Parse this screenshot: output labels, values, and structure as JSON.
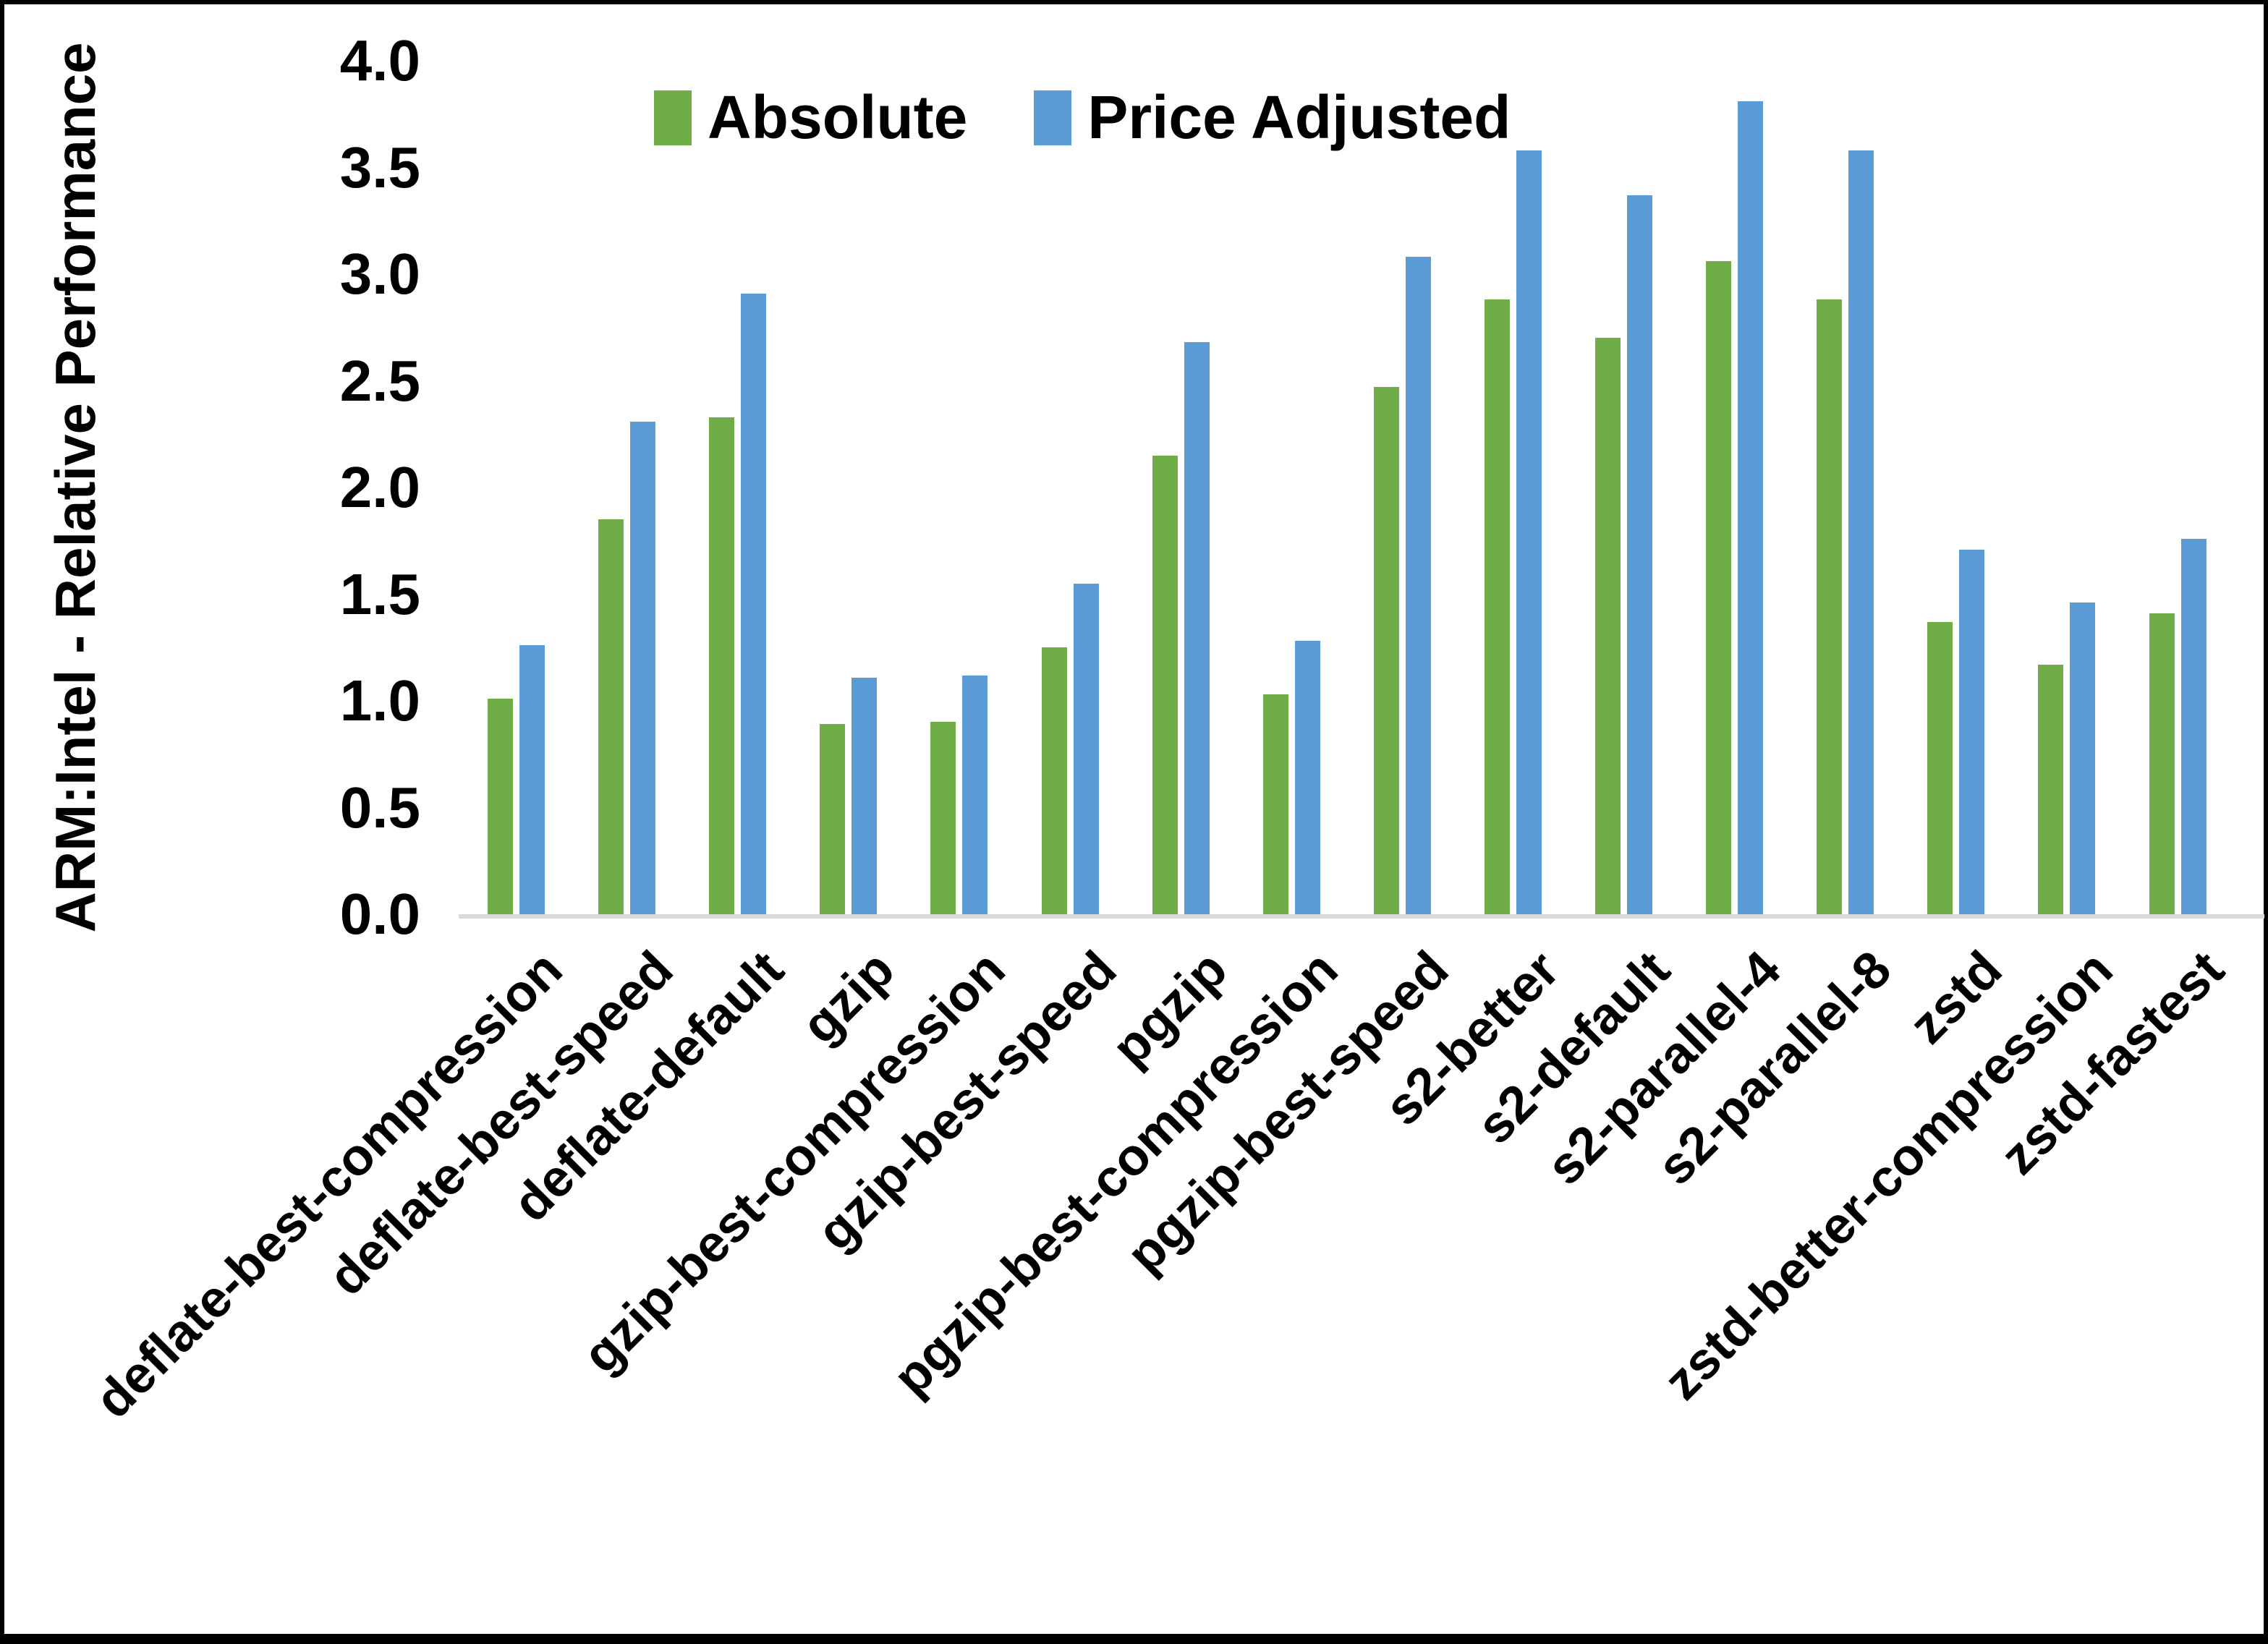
{
  "y_axis": {
    "title": "ARM:Intel - Relative Performance",
    "ticks": [
      "0.0",
      "0.5",
      "1.0",
      "1.5",
      "2.0",
      "2.5",
      "3.0",
      "3.5",
      "4.0"
    ]
  },
  "legend": [
    {
      "label": "Absolute",
      "color": "#70AD47"
    },
    {
      "label": "Price Adjusted",
      "color": "#5B9BD5"
    }
  ],
  "chart_data": {
    "type": "bar",
    "title": "",
    "categories": [
      "deflate-best-compression",
      "deflate-best-speed",
      "deflate-default",
      "gzip",
      "gzip-best-compression",
      "gzip-best-speed",
      "pgzip",
      "pgzip-best-compression",
      "pgzip-best-speed",
      "s2-better",
      "s2-default",
      "s2-parallel-4",
      "s2-parallel-8",
      "zstd",
      "zstd-better-compression",
      "zstd-fastest"
    ],
    "series": [
      {
        "name": "Absolute",
        "color": "#70AD47",
        "values": [
          1.01,
          1.85,
          2.33,
          0.89,
          0.9,
          1.25,
          2.15,
          1.03,
          2.47,
          2.88,
          2.7,
          3.06,
          2.88,
          1.37,
          1.17,
          1.41
        ]
      },
      {
        "name": "Price Adjusted",
        "color": "#5B9BD5",
        "values": [
          1.26,
          2.31,
          2.91,
          1.11,
          1.12,
          1.55,
          2.68,
          1.28,
          3.08,
          3.58,
          3.37,
          3.81,
          3.58,
          1.71,
          1.46,
          1.76
        ]
      }
    ],
    "xlabel": "",
    "ylabel": "ARM:Intel - Relative Performance",
    "ylim": [
      0.0,
      4.0
    ],
    "ytick_step": 0.5,
    "grid": false,
    "legend_position": "top-center",
    "axis_line_color": "#D9D9D9"
  }
}
